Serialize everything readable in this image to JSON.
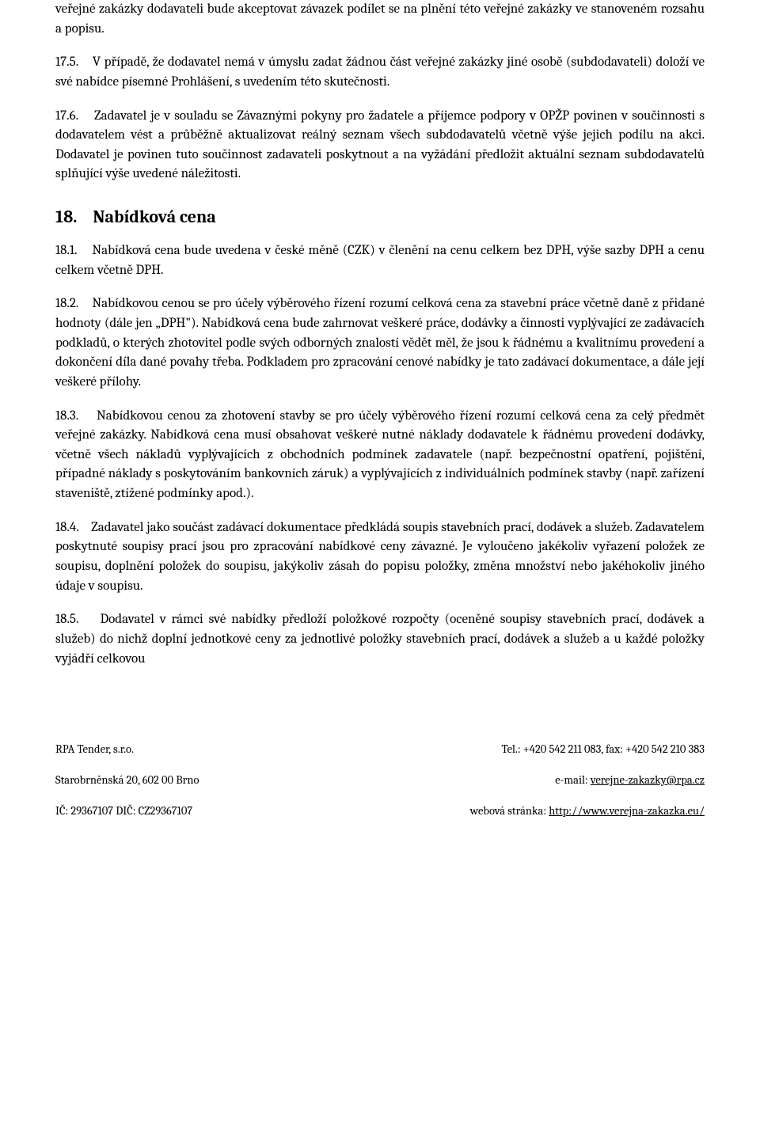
{
  "paragraphs": {
    "p_cont": "veřejné zakázky dodavateli bude akceptovat závazek podílet se na plnění této veřejné zakázky ve stanoveném rozsahu a popisu.",
    "p17_5_num": "17.5.",
    "p17_5": "V případě, že dodavatel nemá v úmyslu zadat žádnou část veřejné zakázky jiné osobě (subdodavateli) doloží ve své nabídce písemné Prohlášení, s uvedením této skutečnosti.",
    "p17_6_num": "17.6.",
    "p17_6": "Zadavatel je v souladu se Závaznými pokyny pro žadatele a příjemce podpory v OPŽP povinen v součinnosti s dodavatelem vést a průběžně aktualizovat reálný seznam všech subdodavatelů včetně výše jejich podílu na akci. Dodavatel je povinen tuto součinnost zadavateli poskytnout a na vyžádání předložit aktuální seznam subdodavatelů splňující výše uvedené náležitosti.",
    "s18_num": "18.",
    "s18_title": "Nabídková cena",
    "p18_1_num": "18.1.",
    "p18_1": "Nabídková cena bude uvedena v české měně (CZK) v členění na cenu celkem bez DPH, výše sazby DPH a cenu celkem včetně DPH.",
    "p18_2_num": "18.2.",
    "p18_2": "Nabídkovou cenou se pro účely výběrového řízení rozumí celková cena za stavební práce včetně daně z přidané hodnoty (dále jen „DPH\"). Nabídková cena bude zahrnovat veškeré práce, dodávky a činnosti vyplývající ze zadávacích podkladů, o kterých zhotovitel podle svých odborných znalostí vědět měl, že jsou k řádnému a kvalitnímu provedení a dokončení díla dané povahy třeba. Podkladem pro zpracování cenové nabídky je tato zadávací dokumentace, a dále její veškeré přílohy.",
    "p18_3_num": "18.3.",
    "p18_3": "Nabídkovou cenou za zhotovení stavby se pro účely výběrového řízení rozumí celková cena za celý předmět veřejné zakázky. Nabídková cena musí obsahovat veškeré nutné náklady dodavatele k řádnému provedení dodávky, včetně všech nákladů vyplývajících z obchodních podmínek zadavatele (např. bezpečnostní opatření, pojištění, případné náklady s poskytováním bankovních záruk) a vyplývajících z individuálních podmínek stavby (např. zařízení staveniště, ztížené podmínky apod.).",
    "p18_4_num": "18.4.",
    "p18_4": "Zadavatel jako součást zadávací dokumentace předkládá soupis stavebních prací, dodávek a služeb. Zadavatelem poskytnuté soupisy prací jsou pro zpracování nabídkové ceny závazné. Je vyloučeno jakékoliv vyřazení položek ze soupisu, doplnění položek do soupisu, jakýkoliv zásah do popisu položky, změna množství nebo jakéhokoliv jiného údaje v soupisu.",
    "p18_5_num": "18.5.",
    "p18_5": "Dodavatel v rámci své nabídky předloží položkové rozpočty (oceněné soupisy stavebních prací, dodávek a služeb) do nichž doplní jednotkové ceny za jednotlivé položky stavebních prací, dodávek a služeb a u každé položky vyjádří celkovou"
  },
  "footer": {
    "left_line1": "RPA Tender, s.r.o.",
    "left_line2": "Starobrněnská 20, 602 00 Brno",
    "left_line3": "IČ: 29367107 DIČ: CZ29367107",
    "right_line1_pre": "Tel.: +420 542 211 083, fax: +420 542 210 383",
    "right_line2_pre": "e-mail: ",
    "right_line2_link": "verejne-zakazky@rpa.cz",
    "right_line3_pre": "webová stránka: ",
    "right_line3_link": "http://www.verejna-zakazka.eu/"
  }
}
